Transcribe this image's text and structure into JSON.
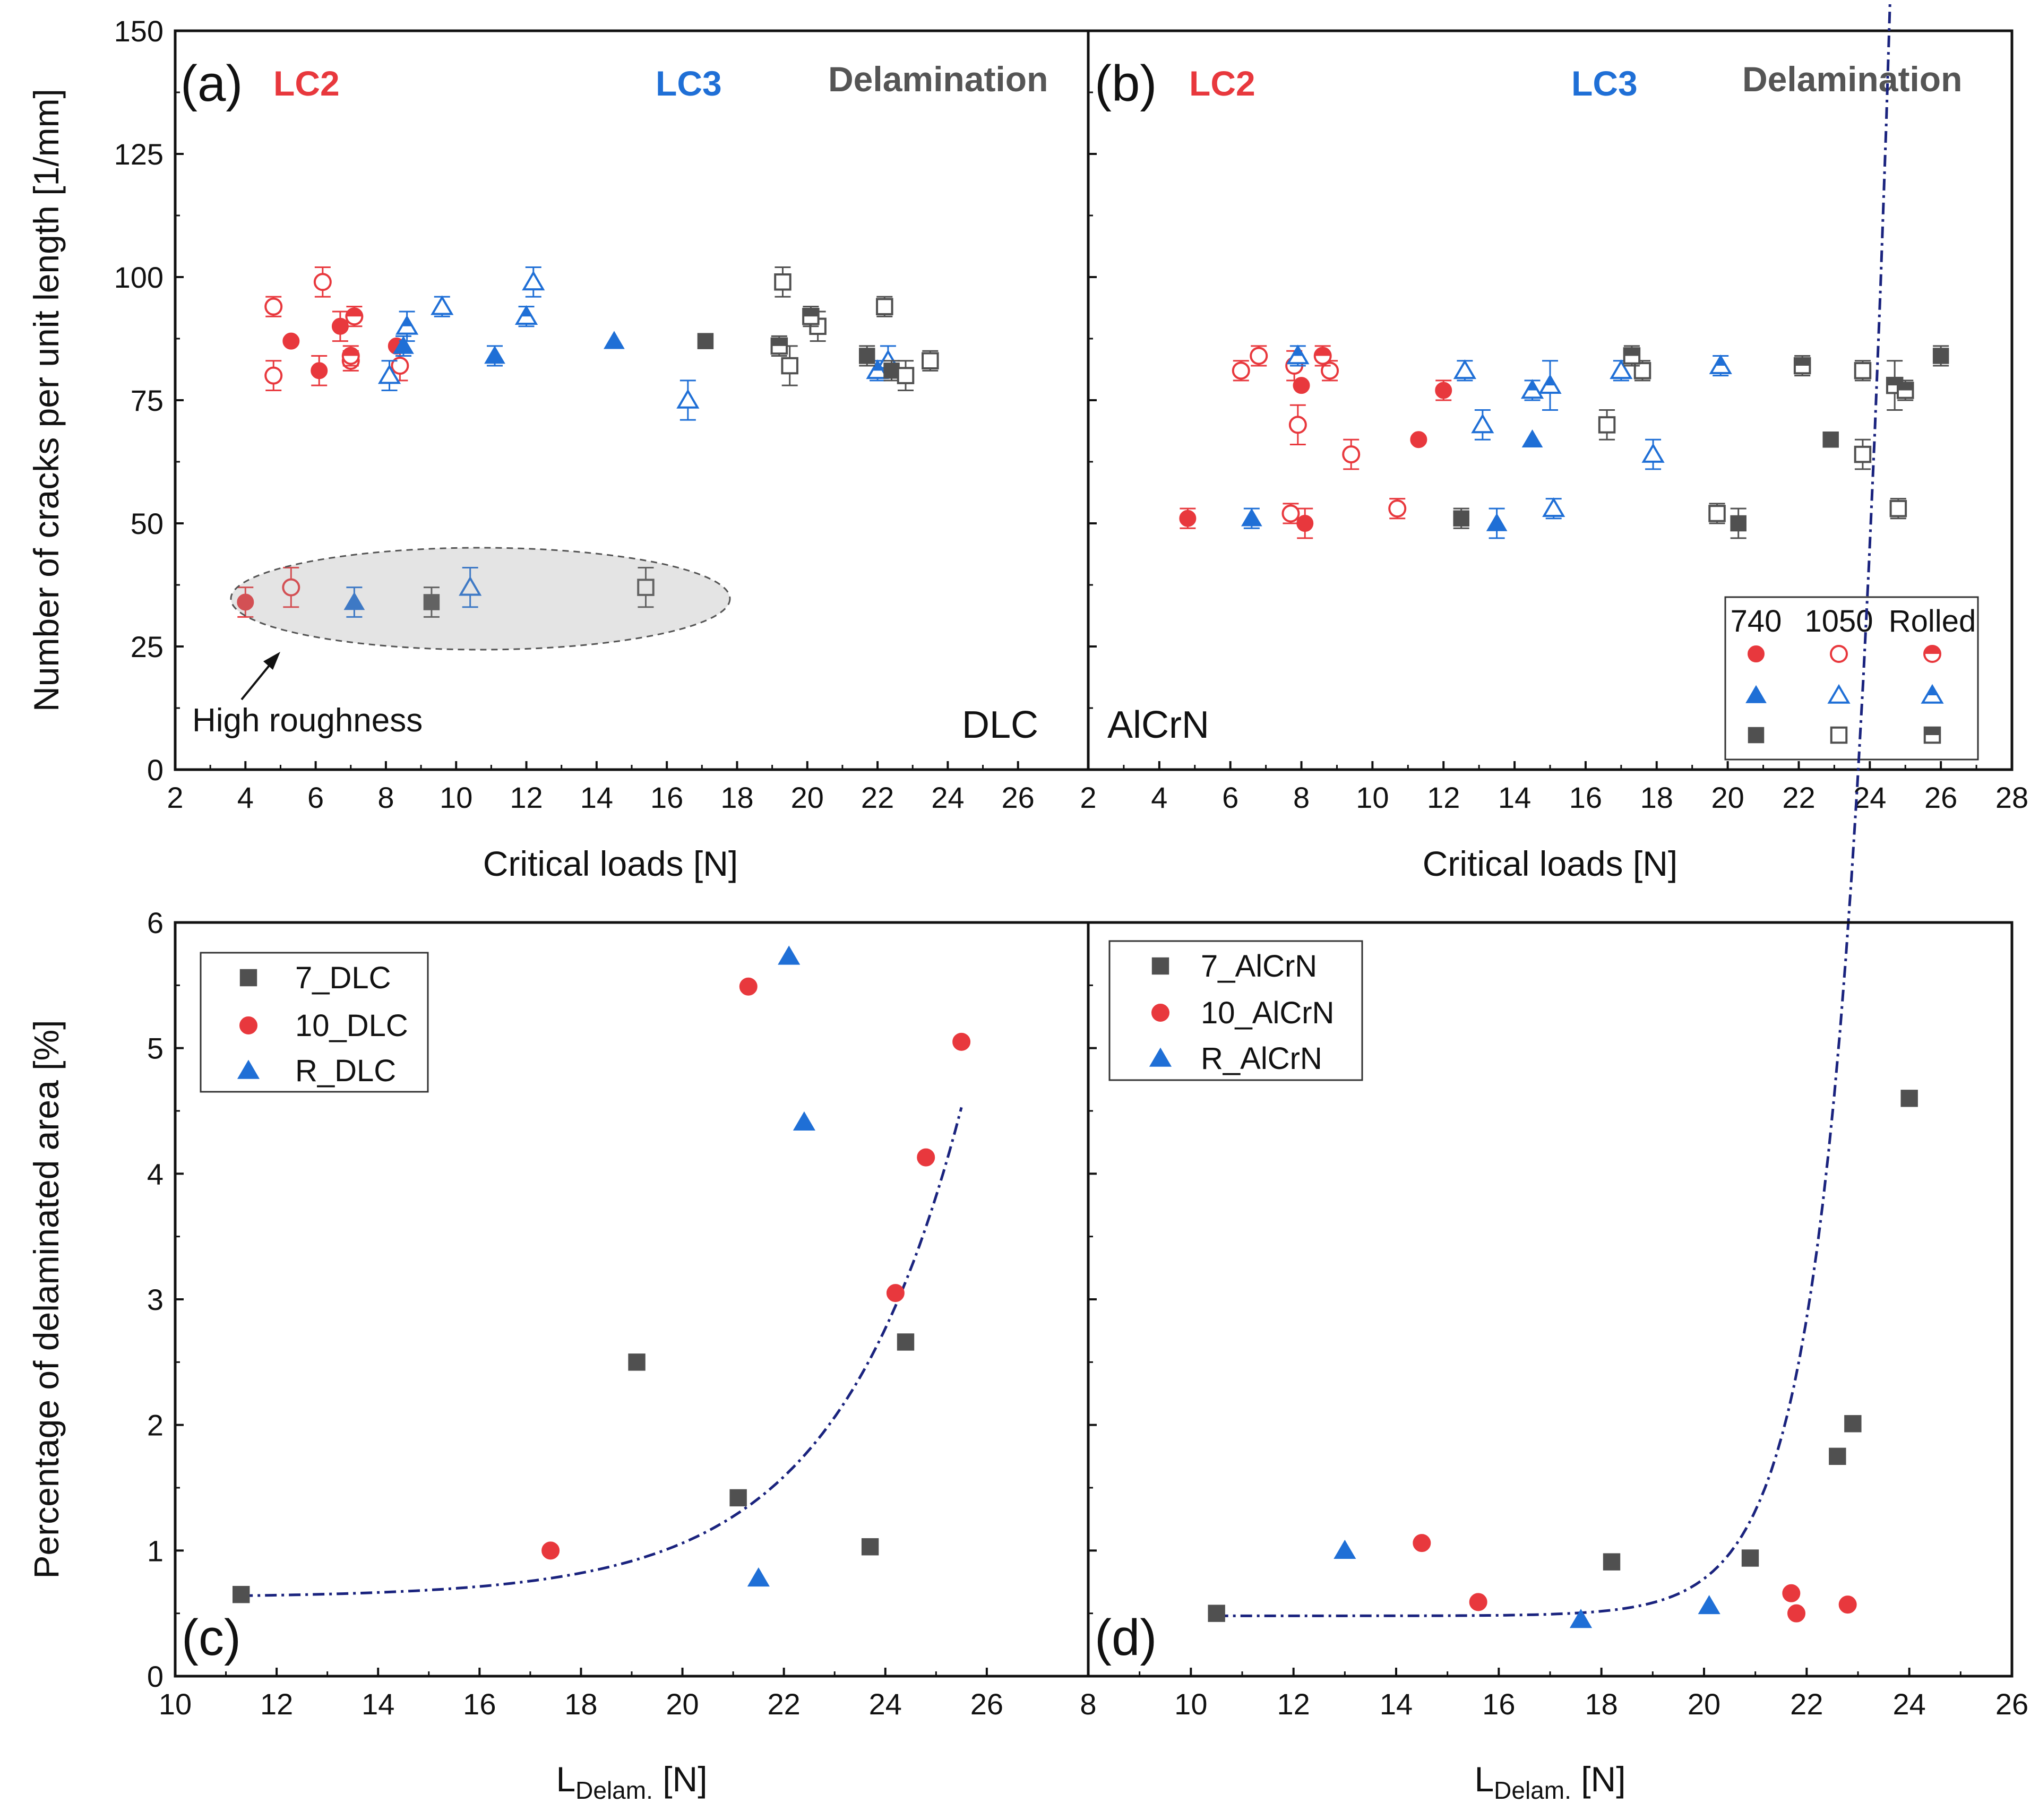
{
  "colors": {
    "red": "#e8383d",
    "blue": "#1f6fd6",
    "gray": "#505050",
    "fit": "#1a237e"
  },
  "chart_data": [
    {
      "id": "a",
      "type": "scatter",
      "panel_label": "(a)",
      "coating": "DLC",
      "headers": [
        "LC2",
        "LC3",
        "Delamination"
      ],
      "xlabel": "Critical loads [N]",
      "ylabel": "Number of cracks per unit length [1/mm]",
      "xlim": [
        2,
        28
      ],
      "ylim": [
        0,
        150
      ],
      "xticks": [
        2,
        4,
        6,
        8,
        10,
        12,
        14,
        16,
        18,
        20,
        22,
        24,
        26
      ],
      "yticks": [
        0,
        25,
        50,
        75,
        100,
        125,
        150
      ],
      "annotation": "High roughness",
      "series": [
        {
          "name": "LC2 740",
          "group": "red",
          "style": "filled",
          "marker": "circle",
          "points": [
            [
              4.0,
              34,
              3
            ],
            [
              5.3,
              87,
              0
            ],
            [
              6.1,
              81,
              3
            ],
            [
              6.7,
              90,
              3
            ],
            [
              8.3,
              86,
              0
            ]
          ]
        },
        {
          "name": "LC2 1050",
          "group": "red",
          "style": "open",
          "marker": "circle",
          "points": [
            [
              4.8,
              94,
              2
            ],
            [
              4.8,
              80,
              3
            ],
            [
              5.3,
              37,
              4
            ],
            [
              6.2,
              99,
              3
            ],
            [
              7.0,
              83,
              2
            ],
            [
              8.4,
              82,
              3
            ]
          ]
        },
        {
          "name": "LC2 Rolled",
          "group": "red",
          "style": "half",
          "marker": "circle",
          "points": [
            [
              7.1,
              92,
              2
            ],
            [
              7.0,
              84,
              2
            ]
          ]
        },
        {
          "name": "LC3 740",
          "group": "blue",
          "style": "filled",
          "marker": "triangle",
          "points": [
            [
              7.1,
              34,
              3
            ],
            [
              8.5,
              86,
              2
            ],
            [
              11.1,
              84,
              2
            ],
            [
              14.5,
              87,
              0
            ]
          ]
        },
        {
          "name": "LC3 1050",
          "group": "blue",
          "style": "open",
          "marker": "triangle",
          "points": [
            [
              8.1,
              80,
              3
            ],
            [
              9.6,
              94,
              2
            ],
            [
              10.4,
              37,
              4
            ],
            [
              12.2,
              99,
              3
            ],
            [
              16.6,
              75,
              4
            ],
            [
              22.3,
              83,
              3
            ]
          ]
        },
        {
          "name": "LC3 Rolled",
          "group": "blue",
          "style": "half",
          "marker": "triangle",
          "points": [
            [
              8.6,
              90,
              3
            ],
            [
              12.0,
              92,
              2
            ],
            [
              22.0,
              81,
              2
            ]
          ]
        },
        {
          "name": "Delamination 740",
          "group": "gray",
          "style": "filled",
          "marker": "square",
          "points": [
            [
              9.3,
              34,
              3
            ],
            [
              17.1,
              87,
              0
            ],
            [
              21.7,
              84,
              2
            ],
            [
              22.4,
              81,
              2
            ]
          ]
        },
        {
          "name": "Delamination 1050",
          "group": "gray",
          "style": "open",
          "marker": "square",
          "points": [
            [
              15.4,
              37,
              4
            ],
            [
              19.3,
              99,
              3
            ],
            [
              19.5,
              82,
              4
            ],
            [
              20.3,
              90,
              3
            ],
            [
              22.2,
              94,
              2
            ],
            [
              22.8,
              80,
              3
            ],
            [
              23.5,
              83,
              2
            ]
          ]
        },
        {
          "name": "Delamination Rolled",
          "group": "gray",
          "style": "half",
          "marker": "square",
          "points": [
            [
              19.2,
              86,
              2
            ],
            [
              20.1,
              92,
              2
            ]
          ]
        }
      ]
    },
    {
      "id": "b",
      "type": "scatter",
      "panel_label": "(b)",
      "coating": "AlCrN",
      "headers": [
        "LC2",
        "LC3",
        "Delamination"
      ],
      "xlabel": "Critical loads [N]",
      "xlim": [
        2,
        28
      ],
      "ylim": [
        0,
        150
      ],
      "xticks": [
        2,
        4,
        6,
        8,
        10,
        12,
        14,
        16,
        18,
        20,
        22,
        24,
        26,
        28
      ],
      "legend": {
        "columns": [
          "740",
          "1050",
          "Rolled"
        ],
        "position": "bottom-right"
      },
      "series": [
        {
          "name": "LC2 740",
          "group": "red",
          "style": "filled",
          "marker": "circle",
          "points": [
            [
              4.8,
              51,
              2
            ],
            [
              8.0,
              78,
              0
            ],
            [
              8.1,
              50,
              3
            ],
            [
              11.3,
              67,
              0
            ],
            [
              12.0,
              77,
              2
            ]
          ]
        },
        {
          "name": "LC2 1050",
          "group": "red",
          "style": "open",
          "marker": "circle",
          "points": [
            [
              6.3,
              81,
              2
            ],
            [
              6.8,
              84,
              2
            ],
            [
              7.7,
              52,
              2
            ],
            [
              7.8,
              82,
              3
            ],
            [
              7.9,
              70,
              4
            ],
            [
              8.8,
              81,
              2
            ],
            [
              9.4,
              64,
              3
            ],
            [
              10.7,
              53,
              2
            ]
          ]
        },
        {
          "name": "LC2 Rolled",
          "group": "red",
          "style": "half",
          "marker": "circle",
          "points": [
            [
              8.6,
              84,
              2
            ]
          ]
        },
        {
          "name": "LC3 740",
          "group": "blue",
          "style": "filled",
          "marker": "triangle",
          "points": [
            [
              6.6,
              51,
              2
            ],
            [
              13.5,
              50,
              3
            ],
            [
              14.5,
              67,
              0
            ]
          ]
        },
        {
          "name": "LC3 1050",
          "group": "blue",
          "style": "open",
          "marker": "triangle",
          "points": [
            [
              12.6,
              81,
              2
            ],
            [
              13.1,
              70,
              3
            ],
            [
              15.1,
              53,
              2
            ],
            [
              17.0,
              81,
              2
            ],
            [
              17.9,
              64,
              3
            ]
          ]
        },
        {
          "name": "LC3 Rolled",
          "group": "blue",
          "style": "half",
          "marker": "triangle",
          "points": [
            [
              7.9,
              84,
              2
            ],
            [
              14.5,
              77,
              2
            ],
            [
              15.0,
              78,
              5
            ],
            [
              19.8,
              82,
              2
            ]
          ]
        },
        {
          "name": "Delamination 740",
          "group": "gray",
          "style": "filled",
          "marker": "square",
          "points": [
            [
              12.5,
              51,
              2
            ],
            [
              20.3,
              50,
              3
            ],
            [
              22.9,
              67,
              0
            ],
            [
              26.0,
              84,
              2
            ]
          ]
        },
        {
          "name": "Delamination 1050",
          "group": "gray",
          "style": "open",
          "marker": "square",
          "points": [
            [
              16.6,
              70,
              3
            ],
            [
              17.6,
              81,
              2
            ],
            [
              19.7,
              52,
              2
            ],
            [
              23.8,
              64,
              3
            ],
            [
              23.8,
              81,
              2
            ],
            [
              24.8,
              53,
              2
            ]
          ]
        },
        {
          "name": "Delamination Rolled",
          "group": "gray",
          "style": "half",
          "marker": "square",
          "points": [
            [
              17.3,
              84,
              2
            ],
            [
              22.1,
              82,
              2
            ],
            [
              24.7,
              78,
              5
            ],
            [
              25.0,
              77,
              2
            ]
          ]
        }
      ]
    },
    {
      "id": "c",
      "type": "scatter",
      "panel_label": "(c)",
      "xlabel_main": "L",
      "xlabel_sub": "Delam.",
      "xlabel_unit": " [N]",
      "ylabel": "Percentage of delaminated area [%]",
      "xlim": [
        10,
        28
      ],
      "ylim": [
        0,
        6
      ],
      "xticks": [
        10,
        12,
        14,
        16,
        18,
        20,
        22,
        24,
        26
      ],
      "yticks": [
        0,
        1,
        2,
        3,
        4,
        5,
        6
      ],
      "series": [
        {
          "name": "7_DLC",
          "marker": "square",
          "group": "gray",
          "points": [
            [
              11.3,
              0.65
            ],
            [
              19.1,
              2.5
            ],
            [
              21.1,
              1.42
            ],
            [
              23.7,
              1.03
            ],
            [
              24.4,
              2.66
            ]
          ]
        },
        {
          "name": "10_DLC",
          "marker": "circle",
          "group": "red",
          "points": [
            [
              17.4,
              1.0
            ],
            [
              21.3,
              5.49
            ],
            [
              24.2,
              3.05
            ],
            [
              24.8,
              4.13
            ],
            [
              25.5,
              5.05
            ]
          ]
        },
        {
          "name": "R_DLC",
          "marker": "triangle",
          "group": "blue",
          "points": [
            [
              21.5,
              0.78
            ],
            [
              22.1,
              5.73
            ],
            [
              22.4,
              4.41
            ]
          ]
        }
      ],
      "fit": {
        "type": "exponential",
        "a": 0.627,
        "b": 0.000145,
        "k": 0.4,
        "x0": 11.3,
        "x1": 25.5
      }
    },
    {
      "id": "d",
      "type": "scatter",
      "panel_label": "(d)",
      "xlabel_main": "L",
      "xlabel_sub": "Delam.",
      "xlabel_unit": " [N]",
      "xlim": [
        8,
        26
      ],
      "ylim": [
        0,
        6
      ],
      "xticks": [
        8,
        10,
        12,
        14,
        16,
        18,
        20,
        22,
        24,
        26
      ],
      "series": [
        {
          "name": "7_AlCrN",
          "marker": "square",
          "group": "gray",
          "points": [
            [
              10.5,
              0.5
            ],
            [
              18.2,
              0.91
            ],
            [
              20.9,
              0.94
            ],
            [
              22.6,
              1.75
            ],
            [
              22.9,
              2.01
            ],
            [
              24.0,
              4.6
            ]
          ]
        },
        {
          "name": "10_AlCrN",
          "marker": "circle",
          "group": "red",
          "points": [
            [
              14.5,
              1.06
            ],
            [
              15.6,
              0.59
            ],
            [
              21.7,
              0.66
            ],
            [
              21.8,
              0.5
            ],
            [
              22.8,
              0.57
            ]
          ]
        },
        {
          "name": "R_AlCrN",
          "marker": "triangle",
          "group": "blue",
          "points": [
            [
              13.0,
              1.0
            ],
            [
              17.6,
              0.45
            ],
            [
              20.1,
              0.56
            ]
          ]
        }
      ],
      "fit": {
        "type": "exponential",
        "a": 0.48,
        "b": 2.74e-10,
        "k": 1.04,
        "x0": 10.5,
        "x1": 24.0
      }
    }
  ]
}
